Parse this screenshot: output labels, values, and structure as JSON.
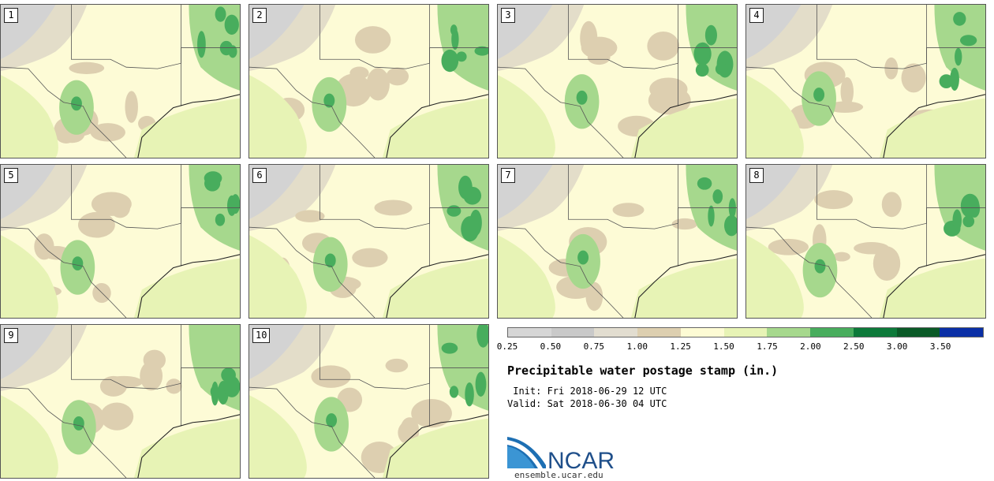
{
  "panels": [
    {
      "label": "1"
    },
    {
      "label": "2"
    },
    {
      "label": "3"
    },
    {
      "label": "4"
    },
    {
      "label": "5"
    },
    {
      "label": "6"
    },
    {
      "label": "7"
    },
    {
      "label": "8"
    },
    {
      "label": "9"
    },
    {
      "label": "10"
    }
  ],
  "colorbar": {
    "colors": [
      "#d6d6d6",
      "#c9c9c9",
      "#e2ddd0",
      "#ddcfb0",
      "#fdfbd4",
      "#e7f3b5",
      "#a6d88d",
      "#48ad5d",
      "#0d7a3a",
      "#0a5a27",
      "#0a2fa6"
    ],
    "ticks": [
      "0.25",
      "0.50",
      "0.75",
      "1.00",
      "1.25",
      "1.50",
      "1.75",
      "2.00",
      "2.50",
      "3.00",
      "3.50"
    ]
  },
  "title": "Precipitable water postage stamp (in.)",
  "init": " Init: Fri 2018-06-29 12 UTC",
  "valid": "Valid: Sat 2018-06-30 04 UTC",
  "logo": {
    "text": "NCAR",
    "url": "ensemble.ucar.edu"
  }
}
